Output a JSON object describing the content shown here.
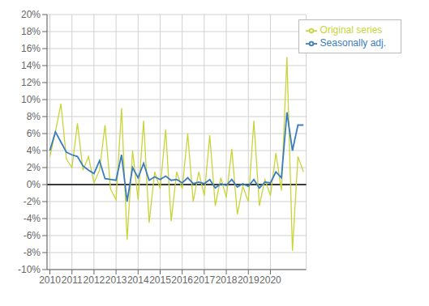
{
  "chart_data": {
    "type": "line",
    "x": [
      2010,
      2010.25,
      2010.5,
      2010.75,
      2011,
      2011.25,
      2011.5,
      2011.75,
      2012,
      2012.25,
      2012.5,
      2012.75,
      2013,
      2013.25,
      2013.5,
      2013.75,
      2014,
      2014.25,
      2014.5,
      2014.75,
      2015,
      2015.25,
      2015.5,
      2015.75,
      2016,
      2016.25,
      2016.5,
      2016.75,
      2017,
      2017.25,
      2017.5,
      2017.75,
      2018,
      2018.25,
      2018.5,
      2018.75,
      2019,
      2019.25,
      2019.5,
      2019.75,
      2020,
      2020.25,
      2020.5,
      2020.75,
      2021,
      2021.25,
      2021.5
    ],
    "series": [
      {
        "name": "Original series",
        "color": "#c8d437",
        "values": [
          3.3,
          6.2,
          9.5,
          3.0,
          2.0,
          7.2,
          1.7,
          3.3,
          0.2,
          1.7,
          7.0,
          -0.5,
          -1.8,
          9.0,
          -6.5,
          4.0,
          -1.8,
          7.5,
          -4.5,
          1.5,
          -0.5,
          6.5,
          -4.3,
          1.5,
          -0.5,
          6.0,
          -2.0,
          1.5,
          -1.3,
          5.8,
          -2.5,
          0.8,
          -1.5,
          4.2,
          -3.5,
          -0.2,
          -2.0,
          7.5,
          -2.5,
          0.6,
          -1.3,
          3.7,
          -0.7,
          15.0,
          -7.8,
          3.3,
          1.5
        ]
      },
      {
        "name": "Seasonally adj.",
        "color": "#3b7cbf",
        "values": [
          4.0,
          6.2,
          5.0,
          3.8,
          3.5,
          3.3,
          2.2,
          1.7,
          1.3,
          2.8,
          0.7,
          0.6,
          0.5,
          3.5,
          -2.0,
          2.0,
          0.8,
          2.5,
          0.5,
          0.9,
          0.6,
          1.0,
          0.5,
          0.6,
          0.2,
          0.8,
          0.1,
          0.3,
          0.1,
          0.6,
          -0.4,
          0.1,
          -0.1,
          0.6,
          -0.3,
          0.1,
          -0.2,
          0.6,
          -0.4,
          0.3,
          0.2,
          1.5,
          0.8,
          8.5,
          4.0,
          7.0,
          7.0
        ]
      }
    ],
    "xlim": [
      2009.87,
      2021.625
    ],
    "xticks": [
      2010,
      2011,
      2012,
      2013,
      2014,
      2015,
      2016,
      2017,
      2018,
      2019,
      2020
    ],
    "ylim": [
      -10,
      20
    ],
    "yticks": [
      {
        "value": -10,
        "label": "-10%"
      },
      {
        "value": -8,
        "label": "-8%"
      },
      {
        "value": -6,
        "label": "-6%"
      },
      {
        "value": -4,
        "label": "-4%"
      },
      {
        "value": -2,
        "label": "-2%"
      },
      {
        "value": 0,
        "label": "0%"
      },
      {
        "value": 2,
        "label": "2%"
      },
      {
        "value": 4,
        "label": "4%"
      },
      {
        "value": 6,
        "label": "6%"
      },
      {
        "value": 8,
        "label": "8%"
      },
      {
        "value": 10,
        "label": "10%"
      },
      {
        "value": 12,
        "label": "12%"
      },
      {
        "value": 14,
        "label": "14%"
      },
      {
        "value": 16,
        "label": "16%"
      },
      {
        "value": 18,
        "label": "18%"
      },
      {
        "value": 20,
        "label": "20%"
      }
    ],
    "grid": true,
    "legend": "upper right"
  }
}
